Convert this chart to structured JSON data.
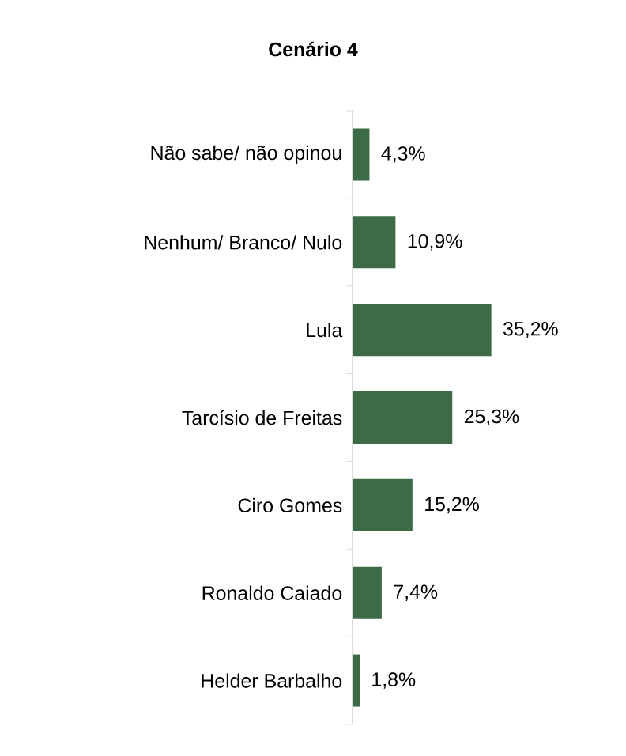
{
  "chart_data": {
    "type": "bar",
    "orientation": "horizontal",
    "title": "Cenário 4",
    "categories": [
      "Não sabe/ não opinou",
      "Nenhum/ Branco/ Nulo",
      "Lula",
      "Tarcísio de Freitas",
      "Ciro Gomes",
      "Ronaldo Caiado",
      "Helder Barbalho"
    ],
    "values": [
      4.3,
      10.9,
      35.2,
      25.3,
      15.2,
      7.4,
      1.8
    ],
    "value_labels": [
      "4,3%",
      "10,9%",
      "35,2%",
      "25,3%",
      "15,2%",
      "7,4%",
      "1,8%"
    ],
    "color": "#3d6b47"
  }
}
